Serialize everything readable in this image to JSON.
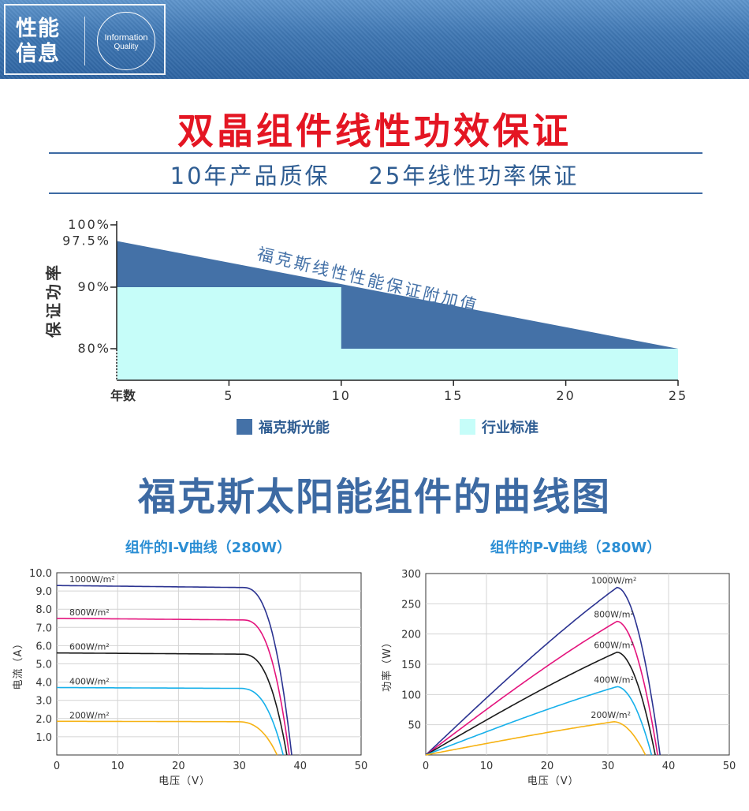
{
  "banner": {
    "title_line1": "性能",
    "title_line2": "信息",
    "en_line1": "Information",
    "en_line2": "Quality"
  },
  "warranty": {
    "title": "双晶组件线性功效保证",
    "subtitle": "10年产品质保    25年线性功率保证"
  },
  "curves_section": {
    "title": "福克斯太阳能组件的曲线图"
  },
  "chart_data": [
    {
      "type": "area",
      "ylabel": "保证功率",
      "xlabel": "年数",
      "annotation": "福克斯线性性能保证附加值",
      "x_ticks": [
        5,
        10,
        15,
        20,
        25
      ],
      "y_ticks": [
        "100%",
        "97.5%",
        "90%",
        "80%"
      ],
      "xlim": [
        0,
        25
      ],
      "ylim": [
        75,
        100
      ],
      "series": [
        {
          "name": "福克斯光能",
          "color": "#4471a7",
          "x": [
            0,
            25
          ],
          "y": [
            97.5,
            80
          ]
        },
        {
          "name": "行业标准",
          "color": "#c6fdf9",
          "x": [
            0,
            10,
            10,
            25
          ],
          "y": [
            90,
            90,
            80,
            80
          ]
        }
      ]
    },
    {
      "type": "line",
      "title": "组件的I-V曲线（280W）",
      "xlabel": "电压（V）",
      "ylabel": "电流（A）",
      "xlim": [
        0,
        50
      ],
      "ylim": [
        0,
        10
      ],
      "x_ticks": [
        0,
        10,
        20,
        30,
        40,
        50
      ],
      "y_ticks": [
        "1.0",
        "2.0",
        "3.0",
        "4.0",
        "5.0",
        "6.0",
        "7.0",
        "8.0",
        "9.0",
        "10.0"
      ],
      "series": [
        {
          "name": "1000W/m²",
          "color": "#2b3391",
          "isc": 9.3,
          "voc": 38.6,
          "knee": 30.5
        },
        {
          "name": "800W/m²",
          "color": "#e4147d",
          "isc": 7.5,
          "voc": 38.2,
          "knee": 30.5
        },
        {
          "name": "600W/m²",
          "color": "#1a1a1a",
          "isc": 5.6,
          "voc": 37.8,
          "knee": 30.3
        },
        {
          "name": "400W/m²",
          "color": "#17b0ea",
          "isc": 3.7,
          "voc": 37.2,
          "knee": 30.0
        },
        {
          "name": "200W/m²",
          "color": "#f6b315",
          "isc": 1.85,
          "voc": 36.2,
          "knee": 29.5
        }
      ]
    },
    {
      "type": "line",
      "title": "组件的P-V曲线（280W）",
      "xlabel": "电压（V）",
      "ylabel": "功率（W）",
      "xlim": [
        0,
        50
      ],
      "ylim": [
        0,
        300
      ],
      "x_ticks": [
        0,
        10,
        20,
        30,
        40,
        50
      ],
      "y_ticks": [
        "50",
        "100",
        "150",
        "200",
        "250",
        "300"
      ],
      "series": [
        {
          "name": "1000W/m²",
          "color": "#2b3391",
          "vmp": 31.5,
          "pmax": 277,
          "voc": 38.6
        },
        {
          "name": "800W/m²",
          "color": "#e4147d",
          "vmp": 31.5,
          "pmax": 221,
          "voc": 38.2
        },
        {
          "name": "600W/m²",
          "color": "#1a1a1a",
          "vmp": 31.5,
          "pmax": 170,
          "voc": 37.8
        },
        {
          "name": "400W/m²",
          "color": "#17b0ea",
          "vmp": 31.5,
          "pmax": 113,
          "voc": 37.2
        },
        {
          "name": "200W/m²",
          "color": "#f6b315",
          "vmp": 31.0,
          "pmax": 55,
          "voc": 36.2
        }
      ]
    }
  ]
}
